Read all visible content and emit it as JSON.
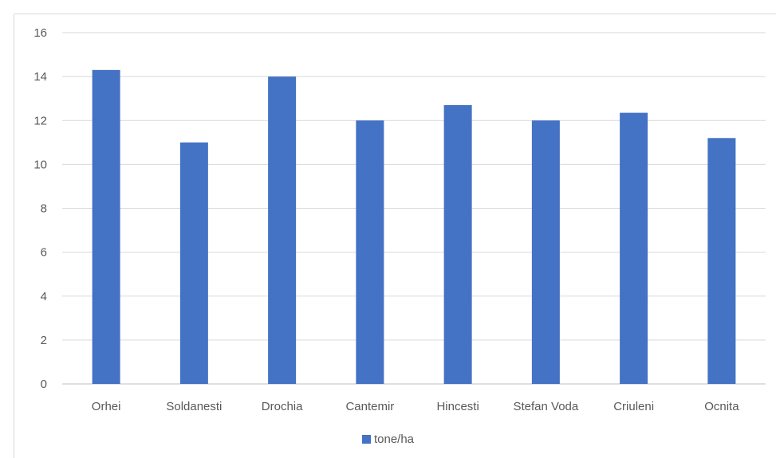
{
  "chart_data": {
    "type": "bar",
    "categories": [
      "Orhei",
      "Soldanesti",
      "Drochia",
      "Cantemir",
      "Hincesti",
      "Stefan Voda",
      "Criuleni",
      "Ocnita"
    ],
    "series": [
      {
        "name": "tone/ha",
        "values": [
          14.3,
          11.0,
          14.0,
          12.0,
          12.7,
          12.0,
          12.35,
          11.2
        ],
        "color": "#4472C4"
      }
    ],
    "ylim": [
      0,
      16
    ],
    "yticks": [
      0,
      2,
      4,
      6,
      8,
      10,
      12,
      14,
      16
    ],
    "grid": true,
    "legend_position": "bottom"
  }
}
